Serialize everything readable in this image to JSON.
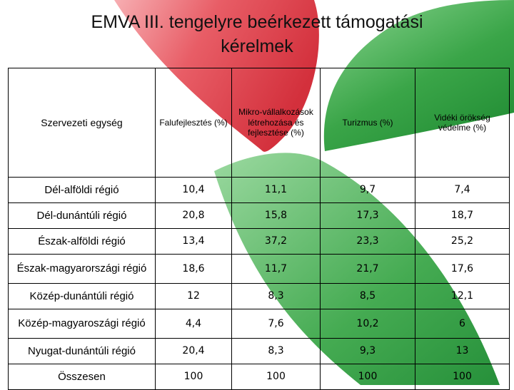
{
  "title_line1": "EMVA III. tengelyre beérkezett támogatási",
  "title_line2": "kérelmek",
  "table": {
    "header": {
      "unit": "Szervezeti egység",
      "col1": "Falufejlesztés (%)",
      "col2": "Mikro-vállalkozások létrehozása és fejlesztése (%)",
      "col3": "Turizmus (%)",
      "col4": "Vidéki örökség védelme (%)"
    },
    "rows": [
      {
        "label": "Dél-alföldi régió",
        "v1": "10,4",
        "v2": "11,1",
        "v3": "9,7",
        "v4": "7,4"
      },
      {
        "label": "Dél-dunántúli régió",
        "v1": "20,8",
        "v2": "15,8",
        "v3": "17,3",
        "v4": "18,7"
      },
      {
        "label": "Észak-alföldi régió",
        "v1": "13,4",
        "v2": "37,2",
        "v3": "23,3",
        "v4": "25,2"
      },
      {
        "label": "Észak-magyarországi régió",
        "v1": "18,6",
        "v2": "11,7",
        "v3": "21,7",
        "v4": "17,6"
      },
      {
        "label": "Közép-dunántúli régió",
        "v1": "12",
        "v2": "8,3",
        "v3": "8,5",
        "v4": "12,1"
      },
      {
        "label": "Közép-magyaroszági régió",
        "v1": "4,4",
        "v2": "7,6",
        "v3": "10,2",
        "v4": "6"
      },
      {
        "label": "Nyugat-dunántúli régió",
        "v1": "20,4",
        "v2": "8,3",
        "v3": "9,3",
        "v4": "13"
      },
      {
        "label": "Összesen",
        "v1": "100",
        "v2": "100",
        "v3": "100",
        "v4": "100"
      }
    ]
  },
  "colors": {
    "red_petal": "#dc3d47",
    "green_petal": "#2e9a3c"
  }
}
